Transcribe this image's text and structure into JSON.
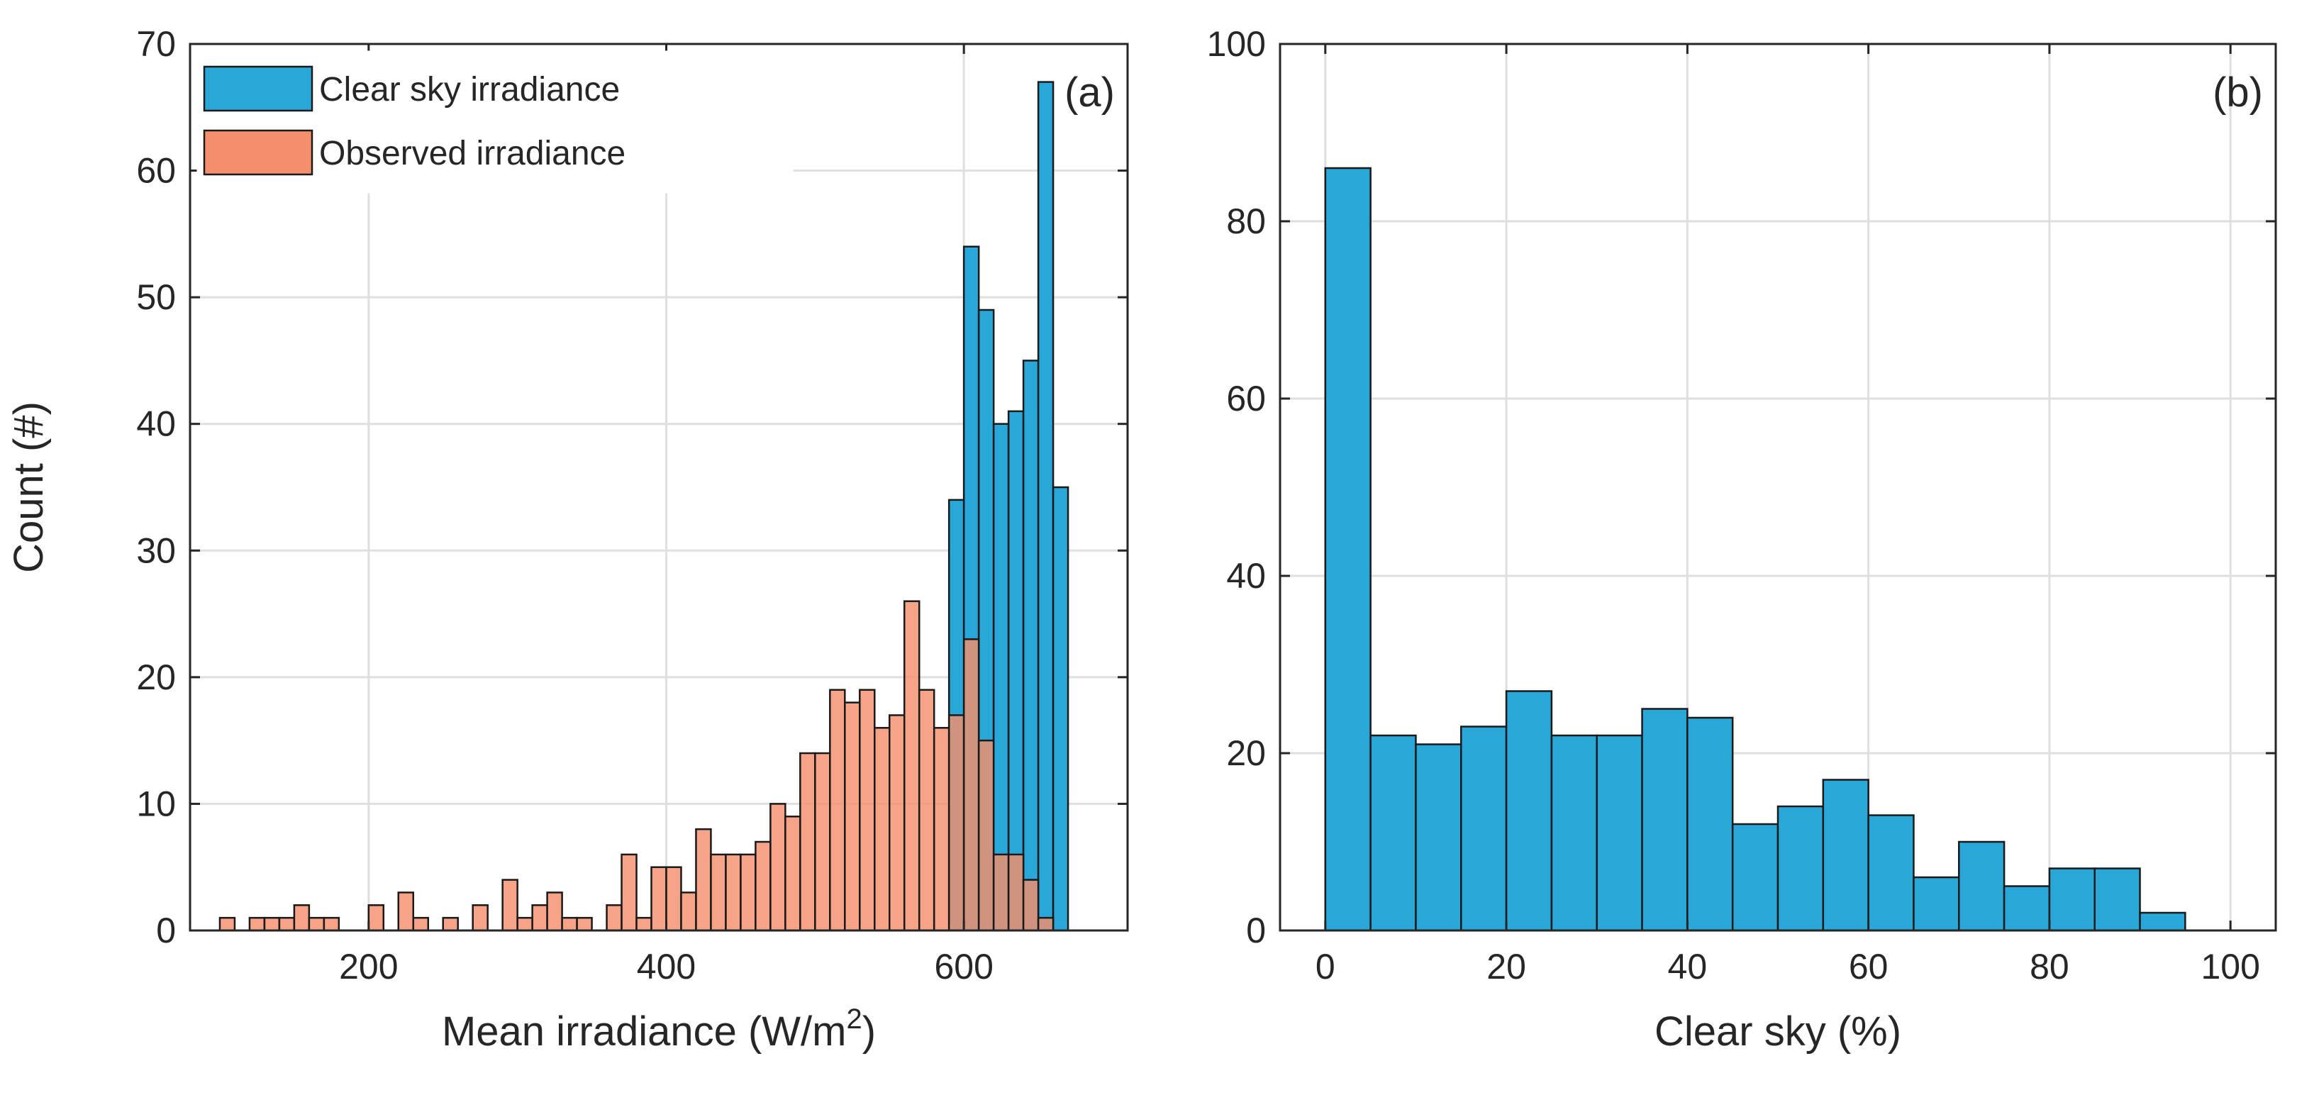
{
  "chart_data": [
    {
      "type": "bar",
      "panel_label": "(a)",
      "xlabel": "Mean irradiance (W/m",
      "xlabel_sup": "2",
      "xlabel_end": ")",
      "ylabel": "Count (#)",
      "xlim": [
        80,
        710
      ],
      "ylim": [
        0,
        70
      ],
      "xticks": [
        200,
        400,
        600
      ],
      "yticks": [
        0,
        10,
        20,
        30,
        40,
        50,
        60,
        70
      ],
      "bin_width": 10,
      "grid": true,
      "legend_position": "top-left",
      "series": [
        {
          "name": "Clear sky irradiance",
          "color": "#2aa7d9",
          "bin_starts": [
            590,
            600,
            610,
            620,
            630,
            640,
            650,
            660
          ],
          "values": [
            34,
            54,
            49,
            40,
            41,
            45,
            67,
            35
          ]
        },
        {
          "name": "Observed irradiance",
          "color": "#f48f6d",
          "bin_starts": [
            100,
            120,
            130,
            140,
            150,
            160,
            170,
            200,
            220,
            230,
            250,
            270,
            290,
            300,
            310,
            320,
            330,
            340,
            360,
            370,
            380,
            390,
            400,
            410,
            420,
            430,
            440,
            450,
            460,
            470,
            480,
            490,
            500,
            510,
            520,
            530,
            540,
            550,
            560,
            570,
            580,
            590,
            600,
            610,
            620,
            630,
            640,
            650
          ],
          "values": [
            1,
            1,
            1,
            1,
            2,
            1,
            1,
            2,
            3,
            1,
            1,
            2,
            4,
            1,
            2,
            3,
            1,
            1,
            2,
            6,
            1,
            5,
            5,
            3,
            8,
            6,
            6,
            6,
            7,
            10,
            9,
            14,
            14,
            19,
            18,
            19,
            16,
            17,
            26,
            19,
            16,
            17,
            23,
            15,
            6,
            6,
            4,
            1
          ]
        }
      ]
    },
    {
      "type": "bar",
      "panel_label": "(b)",
      "xlabel": "Clear sky (%)",
      "ylabel": "",
      "xlim": [
        -5,
        105
      ],
      "ylim": [
        0,
        100
      ],
      "xticks": [
        0,
        20,
        40,
        60,
        80,
        100
      ],
      "yticks": [
        0,
        20,
        40,
        60,
        80,
        100
      ],
      "bin_width": 5,
      "grid": true,
      "series": [
        {
          "name": "Clear sky",
          "color": "#2aa7d9",
          "bin_starts": [
            0,
            5,
            10,
            15,
            20,
            25,
            30,
            35,
            40,
            45,
            50,
            55,
            60,
            65,
            70,
            75,
            80,
            85,
            90
          ],
          "values": [
            86,
            22,
            21,
            23,
            27,
            22,
            22,
            25,
            24,
            12,
            14,
            17,
            13,
            6,
            10,
            5,
            7,
            7,
            2
          ]
        }
      ]
    }
  ]
}
